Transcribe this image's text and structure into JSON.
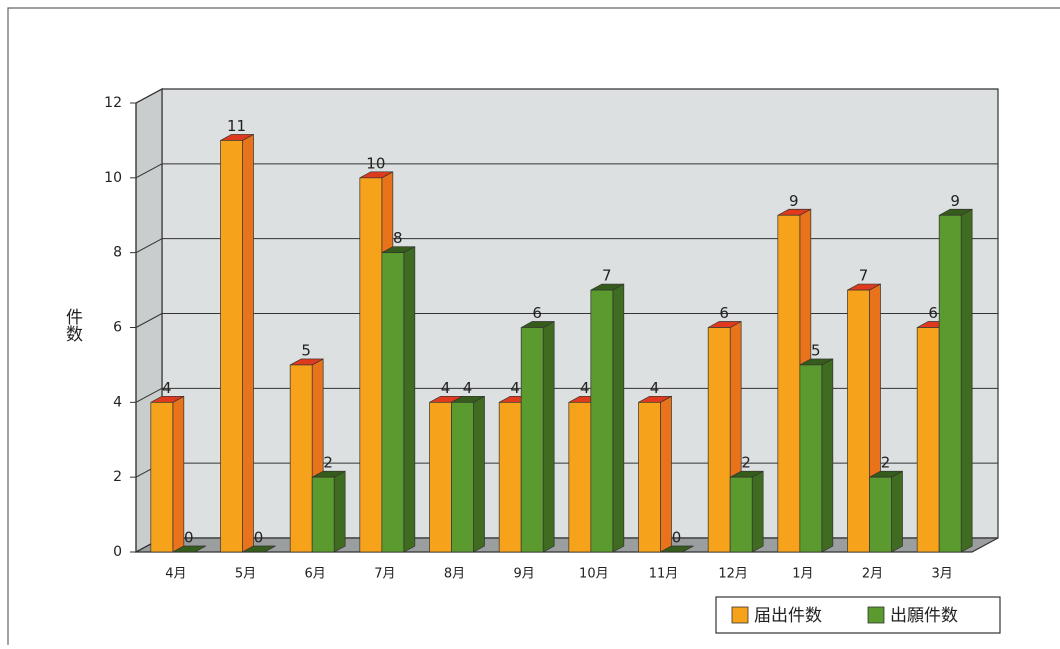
{
  "chart_data": {
    "type": "bar3d",
    "y_label": "件数",
    "categories": [
      "4月",
      "5月",
      "6月",
      "7月",
      "8月",
      "9月",
      "10月",
      "11月",
      "12月",
      "1月",
      "2月",
      "3月"
    ],
    "series": [
      {
        "name": "届出件数",
        "color": "#f7a21b",
        "values": [
          4,
          11,
          5,
          10,
          4,
          4,
          4,
          4,
          6,
          9,
          7,
          6
        ]
      },
      {
        "name": "出願件数",
        "color": "#5a9a2e",
        "values": [
          0,
          0,
          2,
          8,
          4,
          6,
          7,
          0,
          2,
          5,
          2,
          9
        ]
      }
    ],
    "ylim": [
      0,
      12
    ],
    "yticks": [
      0,
      2,
      4,
      6,
      8,
      10,
      12
    ],
    "grid": true,
    "legend": "bottom-right"
  }
}
